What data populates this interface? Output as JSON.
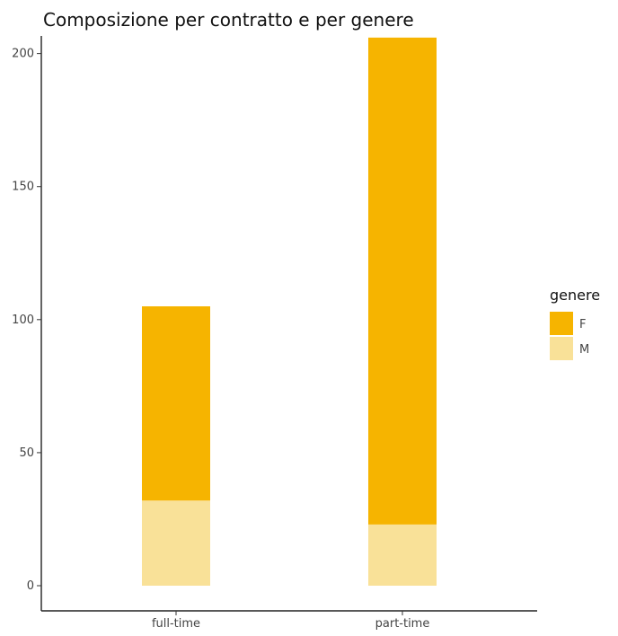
{
  "chart_data": {
    "type": "bar",
    "stacked": true,
    "title": "Composizione per contratto e per genere",
    "xlabel": "",
    "ylabel": "",
    "categories": [
      "full-time",
      "part-time"
    ],
    "series": [
      {
        "name": "M",
        "values": [
          32,
          23
        ],
        "color": "#F9E198"
      },
      {
        "name": "F",
        "values": [
          73,
          183
        ],
        "color": "#F6B400"
      }
    ],
    "ylim": [
      0,
      210
    ],
    "yticks": [
      0,
      50,
      100,
      150,
      200
    ],
    "grid": false,
    "legend": {
      "title": "genere",
      "position": "right",
      "entries": [
        {
          "label": "F",
          "color": "#F6B400"
        },
        {
          "label": "M",
          "color": "#F9E198"
        }
      ]
    }
  }
}
